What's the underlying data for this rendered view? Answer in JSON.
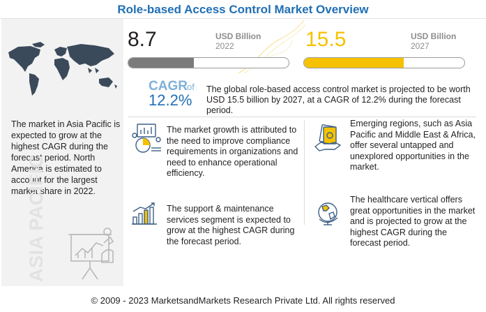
{
  "header": {
    "title": "Role-based Access Control Market Overview"
  },
  "left_panel": {
    "text": "The market in Asia Pacific is expected to grow at the highest CAGR during the forecast period. North America is estimated to account for the largest market share in 2022.",
    "region_label": "ASIA PACIFIC",
    "map_icon": "world-map-icon",
    "presenter_icon": "presenter-chart-icon"
  },
  "market_values": [
    {
      "value": "8.7",
      "unit": "USD Billion",
      "year": "2022",
      "fill_fraction": 0.41,
      "color": "#7b7b7b"
    },
    {
      "value": "15.5",
      "unit": "USD Billion",
      "year": "2027",
      "fill_fraction": 0.62,
      "color": "#f5c100"
    }
  ],
  "cagr": {
    "label": "CAGR",
    "of": "of",
    "value": "12.2%",
    "description": "The global role-based access control market is projected to be worth USD 15.5 billion by 2027, at a CAGR of 12.2% during the forecast period."
  },
  "insights": [
    {
      "icon": "compliance-analytics-icon",
      "text": "The market growth is attributed to the need to improve compliance requirements in organizations and need to enhance operational efficiency."
    },
    {
      "icon": "money-hand-icon",
      "text": "Emerging regions, such as Asia Pacific and Middle East & Africa, offer several untapped and unexplored opportunities in the market."
    },
    {
      "icon": "growth-bar-chart-icon",
      "text": "The support & maintenance services segment is expected to grow at the highest CAGR during the forecast period."
    },
    {
      "icon": "globe-icon",
      "text": "The healthcare vertical offers great opportunities in the market and is projected to grow at the highest CAGR during the forecast period."
    }
  ],
  "footer": {
    "copyright": "© 2009 - 2023 MarketsandMarkets Research Private Ltd. All rights reserved"
  },
  "colors": {
    "title_blue": "#1f6fb5",
    "accent_yellow": "#f5c100",
    "cagr_light_blue": "#7fb1d9"
  }
}
